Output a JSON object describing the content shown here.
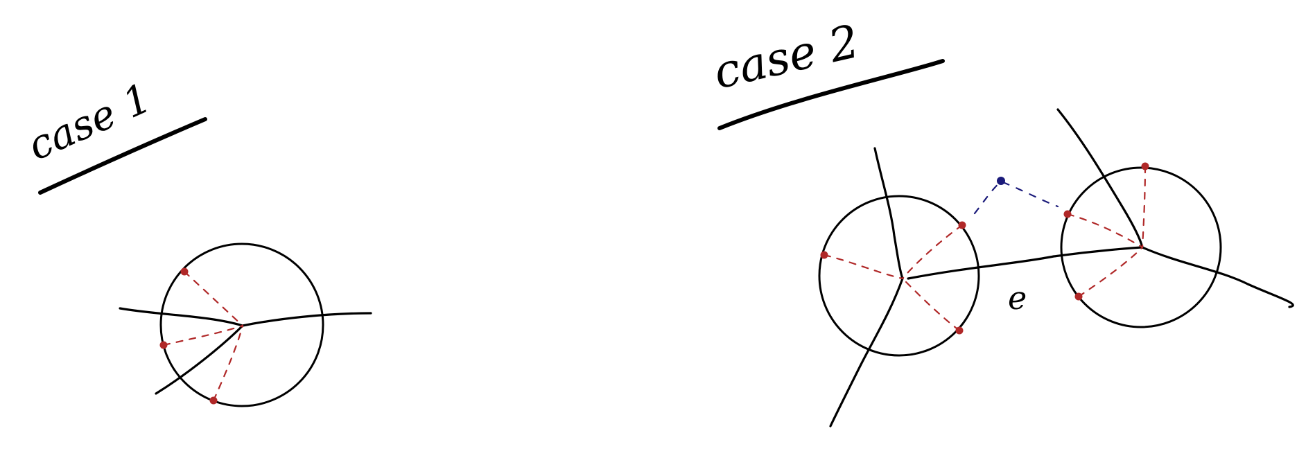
{
  "colors": {
    "ink": "#000000",
    "marker_red": "#b02828",
    "marker_blue": "#1a1a7a"
  },
  "case1": {
    "title": "case 1"
  },
  "case2": {
    "title": "case 2",
    "edge_label": "e"
  }
}
